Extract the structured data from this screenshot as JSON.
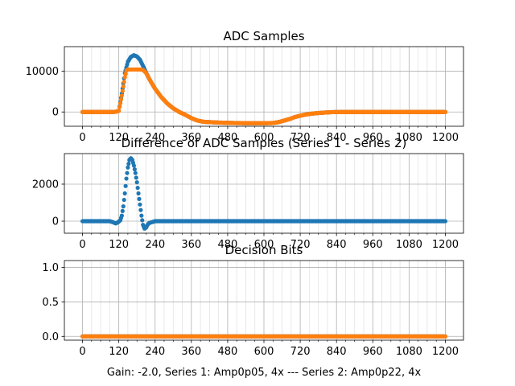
{
  "figure": {
    "xlabel": "Gain: -2.0, Series 1: Amp0p05, 4x --- Series 2: Amp0p22, 4x"
  },
  "chart_data": [
    {
      "type": "scatter",
      "title": "ADC Samples",
      "xlim": [
        -60,
        1260
      ],
      "ylim": [
        -3500,
        16000
      ],
      "xticks": [
        0,
        120,
        240,
        360,
        480,
        600,
        720,
        840,
        960,
        1080,
        1200
      ],
      "yticks": [
        0,
        10000
      ],
      "grid": true,
      "series": [
        {
          "color": "#1f77b4",
          "x": [
            0,
            100,
            110,
            120,
            130,
            140,
            150,
            160,
            170,
            180,
            190,
            200,
            210,
            220,
            230,
            240,
            260,
            280,
            300,
            320,
            340,
            360,
            380,
            400,
            450,
            500,
            550,
            600,
            630,
            650,
            670,
            690,
            700,
            720,
            740,
            760,
            780,
            800,
            820,
            860,
            900,
            1000,
            1100,
            1200
          ],
          "y": [
            0,
            0,
            60,
            300,
            4500,
            9500,
            12300,
            13500,
            13900,
            13600,
            12800,
            11300,
            9700,
            8200,
            6900,
            5700,
            3700,
            2100,
            900,
            0,
            -700,
            -1500,
            -2100,
            -2400,
            -2600,
            -2700,
            -2750,
            -2750,
            -2700,
            -2450,
            -2050,
            -1600,
            -1300,
            -900,
            -600,
            -400,
            -250,
            -150,
            -50,
            0,
            0,
            0,
            0,
            0
          ]
        },
        {
          "color": "#ff7f0e",
          "x": [
            0,
            100,
            110,
            120,
            130,
            140,
            145,
            150,
            160,
            170,
            180,
            190,
            200,
            210,
            220,
            230,
            240,
            260,
            280,
            300,
            320,
            340,
            360,
            380,
            400,
            450,
            500,
            550,
            600,
            630,
            650,
            670,
            690,
            700,
            720,
            740,
            760,
            780,
            800,
            820,
            860,
            900,
            1000,
            1100,
            1200
          ],
          "y": [
            0,
            0,
            60,
            250,
            4000,
            8500,
            10100,
            10400,
            10400,
            10400,
            10400,
            10400,
            10300,
            9600,
            8200,
            6900,
            5700,
            3700,
            2100,
            900,
            0,
            -700,
            -1500,
            -2100,
            -2400,
            -2600,
            -2700,
            -2750,
            -2750,
            -2700,
            -2450,
            -2050,
            -1600,
            -1300,
            -900,
            -600,
            -400,
            -250,
            -150,
            -50,
            0,
            0,
            0,
            0,
            0
          ]
        }
      ]
    },
    {
      "type": "scatter",
      "title": "Difference of ADC Samples (Series 1 - Series 2)",
      "xlim": [
        -60,
        1260
      ],
      "ylim": [
        -650,
        3650
      ],
      "xticks": [
        0,
        120,
        240,
        360,
        480,
        600,
        720,
        840,
        960,
        1080,
        1200
      ],
      "yticks": [
        0,
        2000
      ],
      "grid": true,
      "series": [
        {
          "color": "#1f77b4",
          "x": [
            0,
            90,
            100,
            110,
            118,
            125,
            130,
            135,
            140,
            145,
            150,
            155,
            160,
            165,
            170,
            175,
            180,
            185,
            190,
            195,
            200,
            205,
            210,
            215,
            220,
            230,
            240,
            260,
            300,
            400,
            600,
            800,
            1000,
            1200
          ],
          "y": [
            0,
            0,
            -50,
            -120,
            -50,
            50,
            300,
            800,
            1500,
            2300,
            2900,
            3300,
            3400,
            3300,
            3000,
            2600,
            2100,
            1500,
            900,
            300,
            -200,
            -400,
            -350,
            -200,
            -100,
            -50,
            0,
            0,
            0,
            0,
            0,
            0,
            0,
            0
          ]
        }
      ]
    },
    {
      "type": "scatter",
      "title": "Decision Bits",
      "xlim": [
        -60,
        1260
      ],
      "ylim": [
        -0.055,
        1.1
      ],
      "xticks": [
        0,
        120,
        240,
        360,
        480,
        600,
        720,
        840,
        960,
        1080,
        1200
      ],
      "yticks": [
        0.0,
        0.5,
        1.0
      ],
      "ytick_labels": [
        "0.0",
        "0.5",
        "1.0"
      ],
      "grid": true,
      "series": [
        {
          "color": "#1f77b4",
          "x": [
            0,
            1200
          ],
          "y": [
            0,
            0
          ]
        },
        {
          "color": "#ff7f0e",
          "x": [
            0,
            1200
          ],
          "y": [
            0,
            0
          ]
        }
      ]
    }
  ]
}
